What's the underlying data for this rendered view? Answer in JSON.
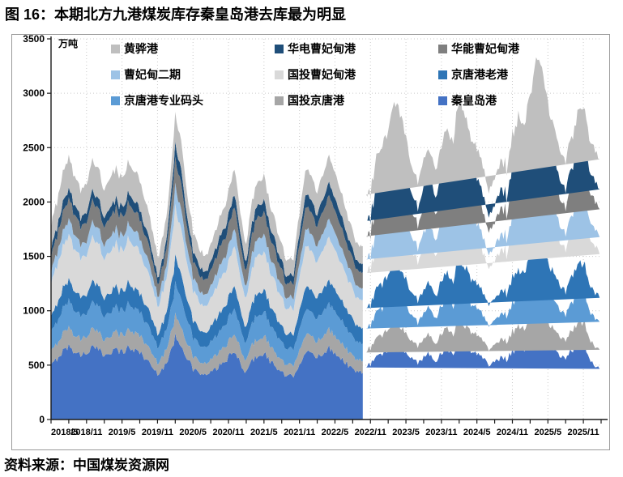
{
  "title": "图 16：本期北方九港煤炭库存秦皇岛港去库最为明显",
  "source_note": "资料来源：中国煤炭资源网",
  "chart_data": {
    "type": "area",
    "stacked": true,
    "title": "北方九港煤炭库存",
    "unit_label": "万吨",
    "ylim": [
      0,
      3500
    ],
    "y_ticks": [
      0,
      500,
      1000,
      1500,
      2000,
      2500,
      3000,
      3500
    ],
    "x_tick_labels": [
      "2018/5",
      "2018/11",
      "2019/5",
      "2019/11",
      "2020/5",
      "2020/11",
      "2021/5",
      "2021/11",
      "2022/5",
      "2022/11",
      "2023/5",
      "2023/11",
      "2024/5",
      "2024/11",
      "2025/5",
      "2025/11"
    ],
    "months_span": 93,
    "gap_index": 53,
    "grid": "dotted",
    "legend_position": "top",
    "legend_order": [
      "黄骅港",
      "华电曹妃甸港",
      "华能曹妃甸港",
      "曹妃甸二期",
      "国投曹妃甸港",
      "京唐港老港",
      "京唐港专业码头",
      "国投京唐港",
      "秦皇岛港"
    ],
    "series": [
      {
        "name": "秦皇岛港",
        "color": "#4472C4",
        "values": [
          490,
          560,
          630,
          670,
          630,
          590,
          620,
          660,
          640,
          590,
          630,
          640,
          620,
          660,
          640,
          620,
          560,
          490,
          420,
          480,
          570,
          760,
          700,
          570,
          460,
          430,
          405,
          430,
          470,
          515,
          570,
          620,
          515,
          430,
          540,
          595,
          610,
          540,
          485,
          430,
          390,
          405,
          515,
          620,
          595,
          570,
          620,
          650,
          620,
          570,
          515,
          460,
          430,
          null,
          505,
          575,
          600,
          650,
          695,
          670,
          625,
          550,
          530,
          575,
          600,
          550,
          600,
          650,
          625,
          695,
          670,
          625,
          600,
          550,
          505,
          530,
          575,
          550,
          625,
          670,
          650,
          720,
          790,
          770,
          695,
          650,
          600,
          575,
          625,
          670,
          695,
          560,
          500,
          450
        ]
      },
      {
        "name": "国投京唐港",
        "color": "#A6A6A6",
        "values": [
          125,
          140,
          160,
          170,
          160,
          145,
          155,
          165,
          160,
          145,
          160,
          160,
          155,
          165,
          160,
          155,
          140,
          125,
          105,
          120,
          145,
          195,
          180,
          145,
          120,
          110,
          105,
          110,
          125,
          135,
          145,
          160,
          135,
          110,
          140,
          155,
          160,
          140,
          125,
          110,
          100,
          105,
          135,
          160,
          155,
          145,
          160,
          170,
          160,
          145,
          135,
          120,
          110,
          null,
          145,
          170,
          175,
          190,
          205,
          195,
          180,
          160,
          155,
          170,
          175,
          160,
          175,
          190,
          180,
          205,
          195,
          180,
          175,
          160,
          145,
          155,
          170,
          160,
          180,
          195,
          190,
          210,
          230,
          225,
          205,
          190,
          175,
          170,
          180,
          195,
          205,
          190,
          180,
          175
        ]
      },
      {
        "name": "京唐港专业码头",
        "color": "#5B9BD5",
        "values": [
          175,
          200,
          225,
          240,
          225,
          210,
          220,
          235,
          230,
          210,
          225,
          230,
          220,
          235,
          230,
          220,
          200,
          175,
          150,
          170,
          210,
          280,
          260,
          210,
          170,
          160,
          150,
          160,
          175,
          190,
          210,
          230,
          190,
          160,
          200,
          220,
          225,
          200,
          180,
          160,
          145,
          150,
          190,
          230,
          220,
          210,
          230,
          240,
          230,
          210,
          190,
          170,
          160,
          null,
          210,
          240,
          250,
          270,
          290,
          280,
          260,
          230,
          220,
          240,
          250,
          230,
          250,
          270,
          260,
          290,
          280,
          260,
          250,
          230,
          210,
          220,
          240,
          230,
          260,
          280,
          270,
          300,
          330,
          320,
          290,
          270,
          250,
          240,
          260,
          280,
          290,
          270,
          260,
          250
        ]
      },
      {
        "name": "京唐港老港",
        "color": "#2E75B6",
        "values": [
          140,
          160,
          180,
          190,
          180,
          170,
          175,
          190,
          185,
          170,
          180,
          185,
          175,
          190,
          185,
          175,
          160,
          140,
          120,
          135,
          190,
          250,
          235,
          190,
          155,
          145,
          135,
          145,
          160,
          170,
          190,
          205,
          170,
          145,
          180,
          200,
          200,
          180,
          160,
          145,
          130,
          135,
          170,
          205,
          200,
          190,
          205,
          215,
          205,
          190,
          170,
          155,
          145,
          null,
          190,
          215,
          225,
          245,
          260,
          250,
          235,
          205,
          200,
          215,
          225,
          205,
          225,
          245,
          235,
          260,
          250,
          235,
          225,
          205,
          190,
          200,
          215,
          205,
          235,
          250,
          245,
          270,
          295,
          290,
          260,
          245,
          225,
          215,
          235,
          250,
          260,
          245,
          235,
          225
        ]
      },
      {
        "name": "国投曹妃甸港",
        "color": "#D9D9D9",
        "values": [
          300,
          340,
          380,
          410,
          380,
          355,
          375,
          400,
          390,
          355,
          380,
          390,
          375,
          400,
          390,
          375,
          340,
          300,
          255,
          290,
          335,
          450,
          415,
          335,
          270,
          255,
          240,
          255,
          280,
          305,
          335,
          370,
          305,
          255,
          320,
          350,
          360,
          320,
          290,
          255,
          230,
          240,
          305,
          370,
          350,
          335,
          370,
          385,
          370,
          335,
          305,
          270,
          255,
          null,
          335,
          385,
          400,
          430,
          465,
          450,
          415,
          370,
          350,
          385,
          400,
          370,
          400,
          430,
          415,
          465,
          450,
          415,
          400,
          370,
          335,
          350,
          385,
          370,
          415,
          450,
          430,
          480,
          530,
          510,
          465,
          430,
          400,
          385,
          415,
          450,
          465,
          430,
          415,
          400
        ]
      },
      {
        "name": "曹妃甸二期",
        "color": "#9DC3E6",
        "values": [
          105,
          120,
          135,
          145,
          135,
          125,
          130,
          140,
          140,
          125,
          135,
          140,
          130,
          140,
          140,
          130,
          120,
          105,
          90,
          100,
          145,
          195,
          180,
          145,
          120,
          110,
          105,
          110,
          125,
          135,
          145,
          160,
          135,
          110,
          140,
          155,
          160,
          140,
          125,
          110,
          100,
          105,
          135,
          160,
          155,
          145,
          160,
          170,
          160,
          145,
          135,
          120,
          110,
          null,
          125,
          145,
          150,
          160,
          175,
          170,
          155,
          140,
          130,
          145,
          150,
          140,
          150,
          160,
          155,
          175,
          170,
          155,
          150,
          140,
          125,
          130,
          145,
          140,
          155,
          170,
          160,
          180,
          200,
          190,
          175,
          160,
          150,
          145,
          155,
          170,
          175,
          160,
          155,
          150
        ]
      },
      {
        "name": "华能曹妃甸港",
        "color": "#7F7F7F",
        "values": [
          140,
          160,
          180,
          190,
          180,
          170,
          175,
          190,
          185,
          170,
          180,
          185,
          175,
          190,
          185,
          175,
          160,
          140,
          120,
          135,
          190,
          250,
          235,
          190,
          155,
          145,
          135,
          145,
          160,
          170,
          190,
          205,
          170,
          145,
          180,
          200,
          200,
          180,
          160,
          145,
          130,
          135,
          170,
          205,
          200,
          190,
          205,
          215,
          205,
          190,
          170,
          155,
          145,
          null,
          210,
          240,
          250,
          270,
          290,
          280,
          260,
          230,
          220,
          240,
          250,
          230,
          250,
          270,
          260,
          290,
          280,
          260,
          250,
          230,
          210,
          220,
          240,
          230,
          260,
          280,
          270,
          300,
          330,
          320,
          290,
          270,
          250,
          240,
          260,
          280,
          290,
          270,
          260,
          250
        ]
      },
      {
        "name": "华电曹妃甸港",
        "color": "#1F4E79",
        "values": [
          70,
          80,
          90,
          95,
          90,
          85,
          90,
          95,
          90,
          85,
          90,
          90,
          90,
          95,
          90,
          90,
          80,
          70,
          60,
          70,
          105,
          140,
          130,
          105,
          85,
          80,
          75,
          80,
          90,
          95,
          105,
          115,
          95,
          80,
          100,
          110,
          110,
          100,
          90,
          80,
          70,
          75,
          95,
          115,
          110,
          105,
          115,
          120,
          115,
          105,
          95,
          85,
          80,
          null,
          145,
          170,
          175,
          190,
          205,
          195,
          180,
          160,
          155,
          170,
          175,
          160,
          175,
          190,
          180,
          205,
          195,
          180,
          175,
          160,
          145,
          155,
          170,
          160,
          180,
          195,
          190,
          210,
          230,
          225,
          205,
          190,
          175,
          170,
          180,
          195,
          205,
          190,
          180,
          175
        ]
      },
      {
        "name": "黄骅港",
        "color": "#BFBFBF",
        "values": [
          210,
          240,
          270,
          290,
          270,
          250,
          265,
          280,
          275,
          250,
          270,
          275,
          265,
          280,
          275,
          265,
          240,
          210,
          180,
          205,
          210,
          280,
          260,
          210,
          170,
          160,
          150,
          160,
          175,
          190,
          210,
          230,
          190,
          160,
          200,
          220,
          225,
          200,
          180,
          160,
          145,
          150,
          190,
          230,
          220,
          210,
          230,
          240,
          230,
          210,
          190,
          170,
          160,
          null,
          230,
          265,
          275,
          295,
          320,
          310,
          285,
          255,
          240,
          265,
          275,
          255,
          275,
          295,
          285,
          320,
          310,
          285,
          275,
          255,
          230,
          240,
          265,
          255,
          285,
          310,
          295,
          330,
          365,
          350,
          320,
          295,
          275,
          265,
          285,
          310,
          320,
          295,
          285,
          275
        ]
      }
    ]
  }
}
